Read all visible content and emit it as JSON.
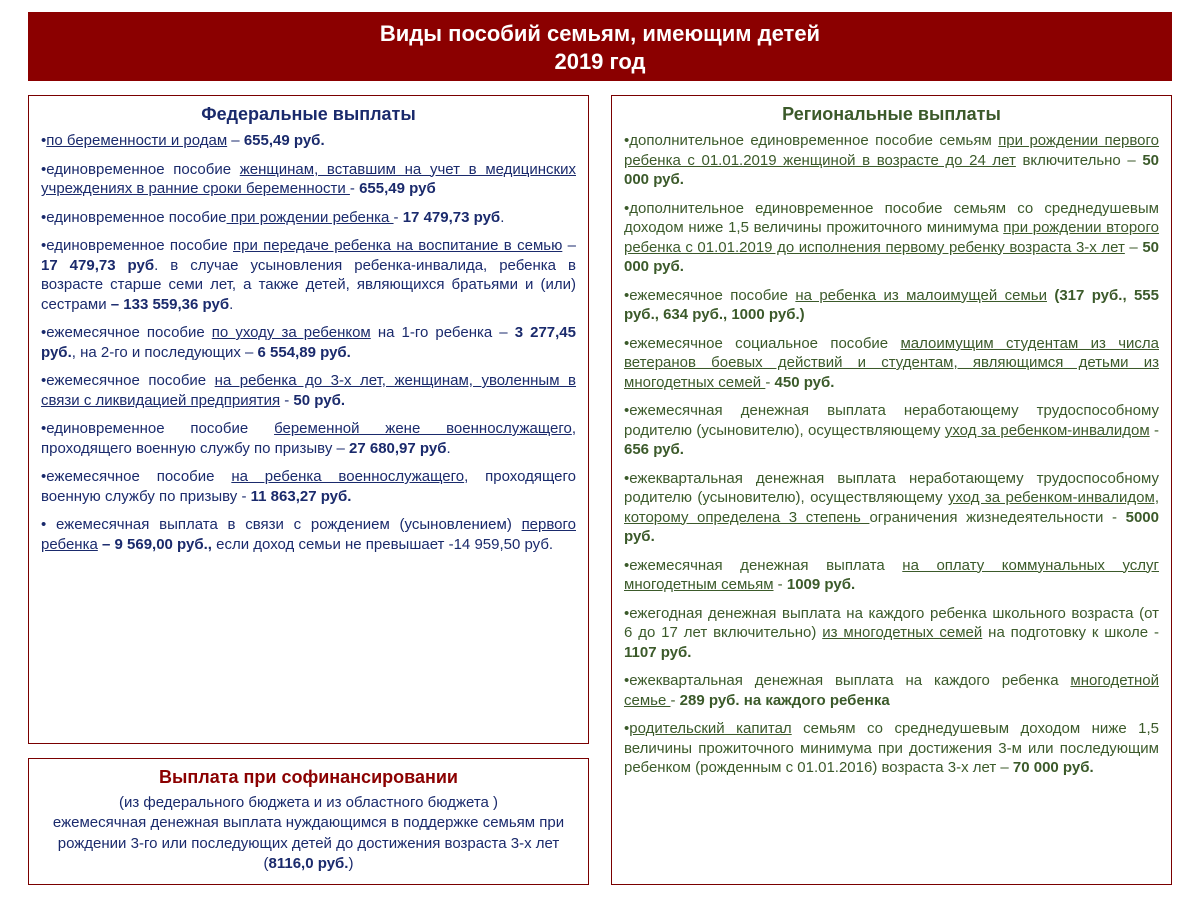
{
  "colors": {
    "header_bg": "#8b0000",
    "header_text": "#ffffff",
    "border": "#7a0000",
    "blue_text": "#1a2a6c",
    "green_text": "#3b5a2a",
    "page_bg": "#ffffff"
  },
  "fonts": {
    "header_size_pt": 17,
    "title_size_pt": 14,
    "body_size_pt": 11.5
  },
  "header": {
    "line1": "Виды пособий семьям, имеющим детей",
    "line2": "2019 год"
  },
  "federal": {
    "title": "Федеральные выплаты",
    "items": [
      {
        "parts": [
          {
            "t": "•"
          },
          {
            "t": "по беременности и родам",
            "u": true
          },
          {
            "t": " – "
          },
          {
            "t": "655,49 руб.",
            "b": true
          }
        ]
      },
      {
        "parts": [
          {
            "t": "•единовременное пособие "
          },
          {
            "t": "женщинам, вставшим на учет в медицинских учреждениях в ранние сроки беременности ",
            "u": true
          },
          {
            "t": " - "
          },
          {
            "t": "655,49 руб",
            "b": true
          }
        ]
      },
      {
        "parts": [
          {
            "t": "•единовременное пособие"
          },
          {
            "t": " при рождении ребенка ",
            "u": true
          },
          {
            "t": " - "
          },
          {
            "t": "17 479,73 руб",
            "b": true
          },
          {
            "t": "."
          }
        ]
      },
      {
        "parts": [
          {
            "t": "•единовременное пособие "
          },
          {
            "t": "при передаче ребенка на воспитание в семью",
            "u": true
          },
          {
            "t": " – "
          },
          {
            "t": "17 479,73 руб",
            "b": true
          },
          {
            "t": ". в случае усыновления ребенка-инвалида, ребенка в возрасте старше семи лет, а также детей, являющихся братьями и (или) сестрами "
          },
          {
            "t": "– 133 559,36 руб",
            "b": true
          },
          {
            "t": "."
          }
        ]
      },
      {
        "parts": [
          {
            "t": "•ежемесячное пособие "
          },
          {
            "t": "по уходу за ребенком",
            "u": true
          },
          {
            "t": "  на 1-го ребенка – "
          },
          {
            "t": "3 277,45 руб.",
            "b": true
          },
          {
            "t": ", на 2-го и последующих – "
          },
          {
            "t": "6 554,89  руб.",
            "b": true
          }
        ]
      },
      {
        "parts": [
          {
            "t": "•ежемесячное пособие "
          },
          {
            "t": "на ребенка до 3-х лет, женщинам, уволенным в связи с ликвидацией предприятия",
            "u": true
          },
          {
            "t": " - "
          },
          {
            "t": "50 руб.",
            "b": true
          }
        ]
      },
      {
        "parts": [
          {
            "t": "•единовременное пособие "
          },
          {
            "t": "беременной жене военнослужащего",
            "u": true
          },
          {
            "t": ", проходящего военную службу по призыву – "
          },
          {
            "t": "27 680,97 руб",
            "b": true
          },
          {
            "t": "."
          }
        ]
      },
      {
        "parts": [
          {
            "t": "•ежемесячное пособие "
          },
          {
            "t": "на ребенка военнослужащего",
            "u": true
          },
          {
            "t": ", проходящего военную службу по призыву - "
          },
          {
            "t": "11 863,27 руб.",
            "b": true
          }
        ]
      },
      {
        "parts": [
          {
            "t": "• ежемесячная выплата в связи с рождением (усыновлением) "
          },
          {
            "t": "первого ребенка",
            "u": true
          },
          {
            "t": " "
          },
          {
            "t": "– 9 569,00 руб.,",
            "b": true
          },
          {
            "t": " если доход семьи не превышает -14 959,50 руб."
          }
        ]
      }
    ]
  },
  "cofinance": {
    "title": "Выплата при софинансировании",
    "subtitle": "(из федерального бюджета и из областного бюджета )",
    "body_parts": [
      {
        "t": "ежемесячная денежная выплата нуждающимся в поддержке семьям при рождении 3-го или последующих детей до достижения возраста 3-х лет ("
      },
      {
        "t": "8116,0 руб.",
        "b": true
      },
      {
        "t": ")"
      }
    ]
  },
  "regional": {
    "title": "Региональные выплаты",
    "items": [
      {
        "parts": [
          {
            "t": "•дополнительное единовременное пособие семьям "
          },
          {
            "t": "при рождении первого ребенка с 01.01.2019 женщиной в возрасте до 24 лет",
            "u": true
          },
          {
            "t": " включительно – "
          },
          {
            "t": "50 000 руб.",
            "b": true
          }
        ]
      },
      {
        "parts": [
          {
            "t": "•дополнительное единовременное пособие семьям со среднедушевым доходом ниже 1,5 величины прожиточного минимума "
          },
          {
            "t": "при рождении второго ребенка с 01.01.2019 до исполнения первому ребенку возраста 3-х лет",
            "u": true
          },
          {
            "t": " – "
          },
          {
            "t": "50 000 руб.",
            "b": true
          }
        ]
      },
      {
        "parts": [
          {
            "t": "•ежемесячное пособие "
          },
          {
            "t": "на ребенка из малоимущей семьи",
            "u": true
          },
          {
            "t": " "
          },
          {
            "t": "(317 руб., 555 руб., 634 руб., 1000 руб.)",
            "b": true
          }
        ]
      },
      {
        "parts": [
          {
            "t": "•ежемесячное социальное пособие "
          },
          {
            "t": "малоимущим студентам из числа ветеранов боевых действий и студентам, являющимся детьми из многодетных семей ",
            "u": true
          },
          {
            "t": " - "
          },
          {
            "t": "450 руб.",
            "b": true
          }
        ]
      },
      {
        "parts": [
          {
            "t": "•ежемесячная денежная выплата неработающему трудоспособному родителю (усыновителю), осуществляющему "
          },
          {
            "t": "уход за ребенком-инвалидом",
            "u": true
          },
          {
            "t": " - "
          },
          {
            "t": "656 руб.",
            "b": true
          }
        ]
      },
      {
        "parts": [
          {
            "t": "•ежеквартальная денежная выплата неработающему трудоспособному родителю (усыновителю), осуществляющему "
          },
          {
            "t": "уход за ребенком-инвалидом, которому определена 3 степень ",
            "u": true
          },
          {
            "t": "ограничения жизнедеятельности - "
          },
          {
            "t": "5000 руб.",
            "b": true
          }
        ]
      },
      {
        "parts": [
          {
            "t": "•ежемесячная денежная выплата "
          },
          {
            "t": "на оплату коммунальных услуг многодетным семьям",
            "u": true
          },
          {
            "t": " - "
          },
          {
            "t": "1009 руб.",
            "b": true
          }
        ]
      },
      {
        "parts": [
          {
            "t": "•ежегодная денежная выплата на каждого ребенка школьного возраста (от 6 до 17 лет включительно) "
          },
          {
            "t": "из многодетных семей",
            "u": true
          },
          {
            "t": " на подготовку к школе - "
          },
          {
            "t": "1107 руб.",
            "b": true
          }
        ]
      },
      {
        "parts": [
          {
            "t": "•ежеквартальная денежная выплата на каждого ребенка "
          },
          {
            "t": "многодетной семье ",
            "u": true
          },
          {
            "t": "- "
          },
          {
            "t": "289 руб. на каждого ребенка",
            "b": true
          }
        ]
      },
      {
        "parts": [
          {
            "t": "•"
          },
          {
            "t": "родительский капитал",
            "u": true
          },
          {
            "t": " семьям со среднедушевым доходом ниже 1,5 величины прожиточного минимума при достижения 3-м или последующим ребенком (рожденным с 01.01.2016) возраста 3-х лет – "
          },
          {
            "t": "70 000 руб.",
            "b": true
          }
        ]
      }
    ]
  }
}
